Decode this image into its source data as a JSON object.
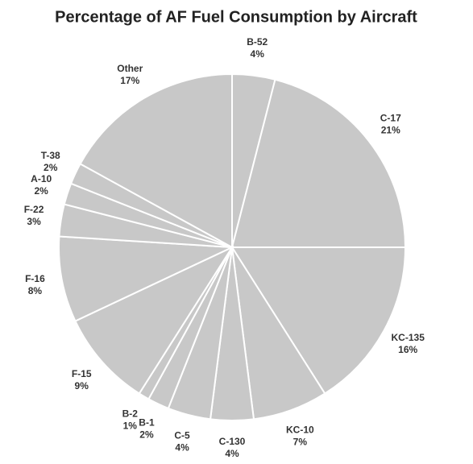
{
  "chart_data": {
    "type": "pie",
    "title": "Percentage of AF Fuel Consumption by Aircraft",
    "categories": [
      "B-52",
      "C-17",
      "KC-135",
      "KC-10",
      "C-130",
      "C-5",
      "B-1",
      "B-2",
      "F-15",
      "F-16",
      "F-22",
      "A-10",
      "T-38",
      "Other"
    ],
    "values": [
      4,
      21,
      16,
      7,
      4,
      4,
      2,
      1,
      9,
      8,
      3,
      2,
      2,
      17
    ],
    "value_labels": [
      "4%",
      "21%",
      "16%",
      "7%",
      "4%",
      "4%",
      "2%",
      "1%",
      "9%",
      "8%",
      "3%",
      "2%",
      "2%",
      "17%"
    ],
    "color": "#c8c8c8"
  }
}
